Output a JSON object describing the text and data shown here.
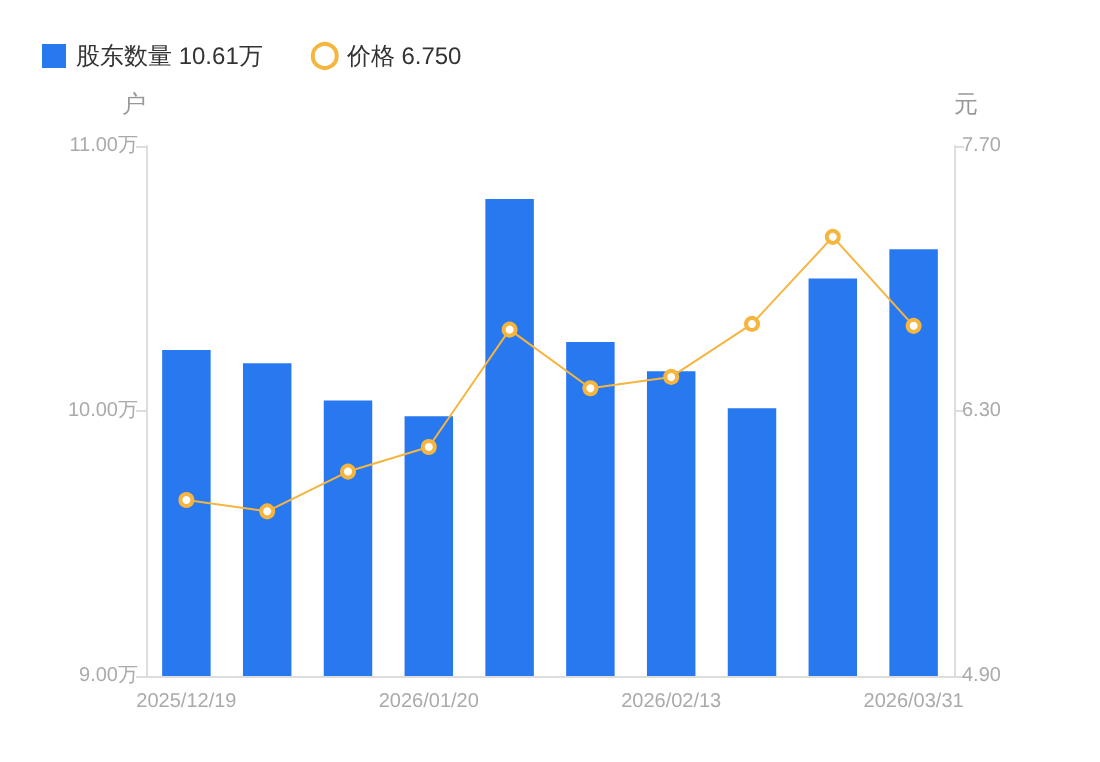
{
  "chart_data": {
    "type": "bar",
    "categories": [
      "2025/12/19",
      null,
      null,
      "2026/01/20",
      null,
      null,
      "2026/02/13",
      null,
      null,
      "2026/03/31"
    ],
    "series": [
      {
        "name": "股东数量 10.61万",
        "color": "#2878f0",
        "values": [
          10.23,
          10.18,
          10.04,
          9.98,
          10.8,
          10.26,
          10.15,
          10.01,
          10.5,
          10.61
        ]
      },
      {
        "name": "价格 6.750",
        "type": "line",
        "axis": "y2",
        "color": "#f5b53f",
        "marker": "circle",
        "values": [
          5.83,
          5.77,
          5.98,
          6.11,
          6.73,
          6.42,
          6.48,
          6.76,
          7.22,
          6.75
        ]
      }
    ],
    "ylabel": "户",
    "y2label": "元",
    "ylim": [
      9,
      11
    ],
    "yticks": [
      {
        "value": 9,
        "label": "9.00万"
      },
      {
        "value": 10,
        "label": "10.00万"
      },
      {
        "value": 11,
        "label": "11.00万"
      }
    ],
    "y2lim": [
      4.9,
      7.7
    ],
    "y2ticks": [
      {
        "value": 4.9,
        "label": "4.90"
      },
      {
        "value": 6.3,
        "label": "6.30"
      },
      {
        "value": 7.7,
        "label": "7.70"
      }
    ],
    "grid": false,
    "legend": "top left"
  }
}
